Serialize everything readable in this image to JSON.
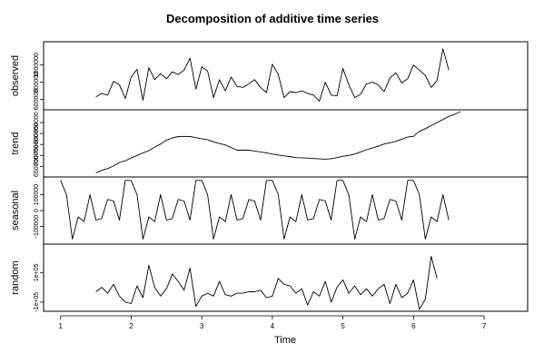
{
  "chart_data": {
    "type": "line",
    "title": "Decomposition of additive time series",
    "xlabel": "Time",
    "xlim": [
      1,
      7
    ],
    "x_ticks": [
      1,
      2,
      3,
      4,
      5,
      6,
      7
    ],
    "x_tick_labels": [
      "1",
      "2",
      "3",
      "4",
      "5",
      "6",
      "7"
    ],
    "x_start": 1.5,
    "x_step": 0.08333,
    "panels": [
      {
        "name": "observed",
        "ylabel": "observed",
        "ylim": [
          500000,
          1250000
        ],
        "y_ticks": [
          600000,
          800000,
          1000000
        ],
        "y_tick_labels": [
          "600000",
          "800000",
          "1000000"
        ],
        "values": [
          630000,
          670000,
          650000,
          810000,
          770000,
          610000,
          860000,
          950000,
          590000,
          970000,
          830000,
          900000,
          840000,
          920000,
          890000,
          940000,
          1080000,
          720000,
          980000,
          930000,
          620000,
          830000,
          700000,
          860000,
          750000,
          740000,
          780000,
          830000,
          740000,
          680000,
          1010000,
          890000,
          620000,
          690000,
          680000,
          700000,
          670000,
          650000,
          580000,
          800000,
          650000,
          640000,
          960000,
          770000,
          620000,
          660000,
          780000,
          800000,
          770000,
          690000,
          850000,
          910000,
          790000,
          840000,
          1000000,
          940000,
          880000,
          740000,
          820000,
          1190000,
          940000
        ]
      },
      {
        "name": "trend",
        "ylabel": "trend",
        "ylim": [
          610000,
          900000
        ],
        "y_ticks": [
          650000,
          700000,
          750000,
          800000,
          850000
        ],
        "y_tick_labels": [
          "650000",
          "700000",
          "750000",
          "800000",
          "850000"
        ],
        "values": [
          620000,
          632000,
          640000,
          652000,
          668000,
          676000,
          688000,
          700000,
          712000,
          722000,
          738000,
          752000,
          770000,
          780000,
          786000,
          787000,
          786000,
          781000,
          776000,
          772000,
          762000,
          754000,
          748000,
          736000,
          724000,
          724000,
          724000,
          720000,
          716000,
          712000,
          706000,
          702000,
          698000,
          695000,
          690000,
          689000,
          688000,
          686000,
          684000,
          683000,
          685000,
          690000,
          696000,
          700000,
          706000,
          716000,
          726000,
          734000,
          742000,
          752000,
          758000,
          764000,
          774000,
          784000,
          787000,
          810000,
          822000,
          836000,
          850000,
          864000,
          878000,
          888000,
          900000
        ]
      },
      {
        "name": "seasonal",
        "ylabel": "seasonal",
        "ylim": [
          -200000,
          200000
        ],
        "y_ticks": [
          -100000,
          0,
          100000
        ],
        "y_tick_labels": [
          "-100000",
          "0",
          "100000"
        ],
        "values": [
          190000,
          100000,
          -180000,
          -40000,
          -70000,
          100000,
          -60000,
          -50000,
          70000,
          60000,
          -60000
        ],
        "x_start": 1.0,
        "cycles": 6
      },
      {
        "name": "random",
        "ylabel": "random",
        "ylim": [
          -150000,
          280000
        ],
        "y_ticks": [
          -100000,
          100000
        ],
        "y_tick_labels": [
          "-1e+05",
          "1e+05"
        ],
        "values": [
          -30000,
          0,
          -40000,
          20000,
          -60000,
          -100000,
          -110000,
          10000,
          -70000,
          150000,
          0,
          -60000,
          -10000,
          90000,
          40000,
          -20000,
          130000,
          -130000,
          -60000,
          -40000,
          -60000,
          40000,
          -50000,
          -60000,
          -40000,
          -40000,
          -30000,
          -30000,
          -20000,
          -70000,
          -60000,
          60000,
          20000,
          10000,
          -40000,
          -10000,
          -120000,
          -30000,
          -60000,
          40000,
          -100000,
          0,
          50000,
          -40000,
          10000,
          -50000,
          -10000,
          -60000,
          -10000,
          20000,
          -110000,
          20000,
          -70000,
          -40000,
          50000,
          -150000,
          -80000,
          210000,
          60000
        ]
      }
    ]
  }
}
